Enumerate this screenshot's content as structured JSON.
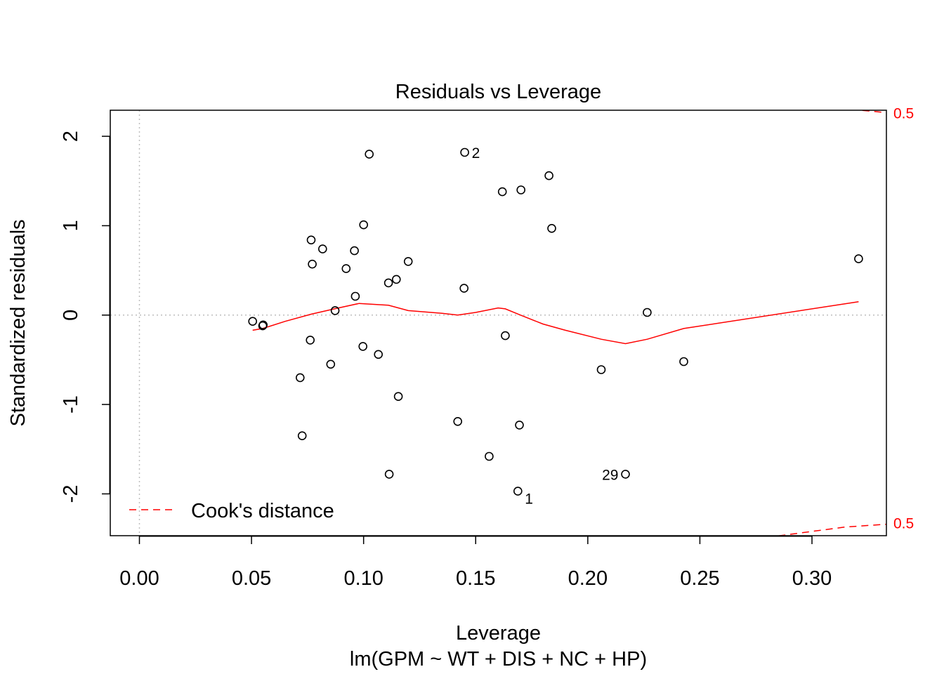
{
  "chart_data": {
    "type": "scatter",
    "title": "Residuals vs Leverage",
    "xlabel": "Leverage",
    "subtitle": "lm(GPM ~ WT + DIS + NC + HP)",
    "ylabel": "Standardized residuals",
    "xlim": [
      -0.013,
      0.3332
    ],
    "ylim": [
      -2.4677,
      2.2916
    ],
    "x_ticks": [
      "0.00",
      "0.05",
      "0.10",
      "0.15",
      "0.20",
      "0.25",
      "0.30"
    ],
    "y_ticks": [
      "-2",
      "-1",
      "0",
      "1",
      "2"
    ],
    "grid": false,
    "reference_lines": {
      "x": 0,
      "y": 0,
      "style": "dotted",
      "color": "#bebebe"
    },
    "points": [
      {
        "x": 0.0505,
        "y": -0.07
      },
      {
        "x": 0.0552,
        "y": -0.11
      },
      {
        "x": 0.055,
        "y": -0.12
      },
      {
        "x": 0.0717,
        "y": -0.7
      },
      {
        "x": 0.0726,
        "y": -1.35
      },
      {
        "x": 0.0762,
        "y": -0.28
      },
      {
        "x": 0.0766,
        "y": 0.84
      },
      {
        "x": 0.0771,
        "y": 0.57
      },
      {
        "x": 0.0817,
        "y": 0.74
      },
      {
        "x": 0.0853,
        "y": -0.55
      },
      {
        "x": 0.0873,
        "y": 0.05
      },
      {
        "x": 0.0922,
        "y": 0.52
      },
      {
        "x": 0.0959,
        "y": 0.72
      },
      {
        "x": 0.0963,
        "y": 0.21
      },
      {
        "x": 0.0997,
        "y": -0.35
      },
      {
        "x": 0.1,
        "y": 1.01
      },
      {
        "x": 0.1025,
        "y": 1.8
      },
      {
        "x": 0.1066,
        "y": -0.44
      },
      {
        "x": 0.1111,
        "y": 0.36
      },
      {
        "x": 0.1114,
        "y": -1.78
      },
      {
        "x": 0.1146,
        "y": 0.4
      },
      {
        "x": 0.1155,
        "y": -0.91
      },
      {
        "x": 0.1199,
        "y": 0.6
      },
      {
        "x": 0.142,
        "y": -1.19
      },
      {
        "x": 0.1448,
        "y": 0.3
      },
      {
        "x": 0.1451,
        "y": 1.82
      },
      {
        "x": 0.156,
        "y": -1.58
      },
      {
        "x": 0.1619,
        "y": 1.38
      },
      {
        "x": 0.1632,
        "y": -0.23
      },
      {
        "x": 0.1688,
        "y": -1.97
      },
      {
        "x": 0.1695,
        "y": -1.23
      },
      {
        "x": 0.1702,
        "y": 1.4
      },
      {
        "x": 0.1827,
        "y": 1.56
      },
      {
        "x": 0.1839,
        "y": 0.97
      },
      {
        "x": 0.206,
        "y": -0.61
      },
      {
        "x": 0.2168,
        "y": -1.78
      },
      {
        "x": 0.2265,
        "y": 0.03
      },
      {
        "x": 0.2428,
        "y": -0.52
      },
      {
        "x": 0.3208,
        "y": 0.63
      }
    ],
    "labeled_points": [
      {
        "label": "2",
        "x": 0.1451,
        "y": 1.82,
        "side": "right"
      },
      {
        "label": "1",
        "x": 0.1688,
        "y": -1.97,
        "side": "right"
      },
      {
        "label": "29",
        "x": 0.2168,
        "y": -1.78,
        "side": "left"
      }
    ],
    "smooth_line": {
      "color": "#ff0000",
      "x": [
        0.0505,
        0.055,
        0.065,
        0.0766,
        0.087,
        0.098,
        0.1111,
        0.1199,
        0.135,
        0.142,
        0.15,
        0.16,
        0.1632,
        0.17,
        0.18,
        0.19,
        0.206,
        0.2168,
        0.2265,
        0.2428,
        0.3208
      ],
      "y": [
        -0.17,
        -0.15,
        -0.07,
        0.01,
        0.07,
        0.13,
        0.11,
        0.05,
        0.02,
        0.0,
        0.03,
        0.08,
        0.07,
        0.0,
        -0.1,
        -0.17,
        -0.27,
        -0.32,
        -0.27,
        -0.15,
        0.15
      ]
    },
    "cooks_distance": {
      "color": "#ff0000",
      "style": "dashed",
      "level_labels": [
        "0.5",
        "0.5"
      ],
      "upper_curve": {
        "x": [
          0.3225,
          0.3332
        ],
        "y": [
          2.29,
          2.265
        ]
      },
      "lower_curve": {
        "x": [
          0.285,
          0.3,
          0.315,
          0.3332
        ],
        "y": [
          -2.47,
          -2.42,
          -2.37,
          -2.34
        ]
      }
    },
    "legend": {
      "entries": [
        "Cook's distance"
      ],
      "position": "bottom-left",
      "line_style": "dashed",
      "color": "#ff0000"
    }
  }
}
